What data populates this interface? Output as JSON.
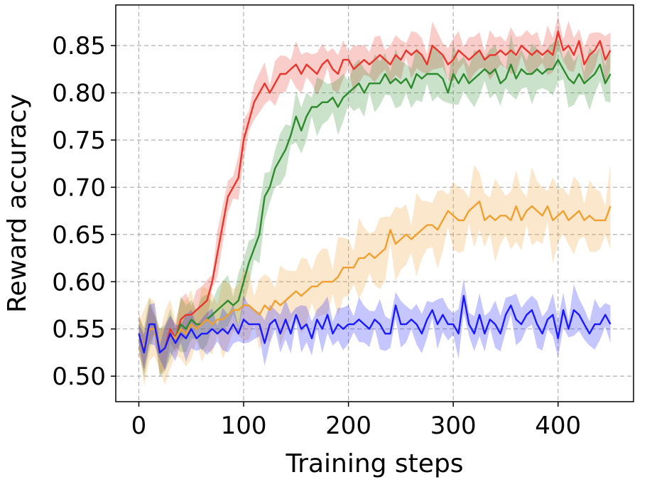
{
  "chart_data": {
    "type": "line",
    "xlabel": "Training steps",
    "ylabel": "Reward accuracy",
    "xlim": [
      -22,
      472
    ],
    "ylim": [
      0.473,
      0.893
    ],
    "xticks": [
      0,
      100,
      200,
      300,
      400
    ],
    "yticks": [
      0.5,
      0.55,
      0.6,
      0.65,
      0.7,
      0.75,
      0.8,
      0.85
    ],
    "xtick_labels": [
      "0",
      "100",
      "200",
      "300",
      "400"
    ],
    "ytick_labels": [
      "0.50",
      "0.55",
      "0.60",
      "0.65",
      "0.70",
      "0.75",
      "0.80",
      "0.85"
    ],
    "grid": true,
    "x": [
      0,
      5,
      10,
      15,
      20,
      25,
      30,
      35,
      40,
      45,
      50,
      55,
      60,
      65,
      70,
      75,
      80,
      85,
      90,
      95,
      100,
      105,
      110,
      115,
      120,
      125,
      130,
      135,
      140,
      145,
      150,
      155,
      160,
      165,
      170,
      175,
      180,
      185,
      190,
      195,
      200,
      205,
      210,
      215,
      220,
      225,
      230,
      235,
      240,
      245,
      250,
      255,
      260,
      265,
      270,
      275,
      280,
      285,
      290,
      295,
      300,
      305,
      310,
      315,
      320,
      325,
      330,
      335,
      340,
      345,
      350,
      355,
      360,
      365,
      370,
      375,
      380,
      385,
      390,
      395,
      400,
      405,
      410,
      415,
      420,
      425,
      430,
      435,
      440,
      445,
      450
    ],
    "series": [
      {
        "color": "#e8362c",
        "values": [
          0.545,
          0.525,
          0.555,
          0.555,
          0.525,
          0.53,
          0.55,
          0.54,
          0.56,
          0.565,
          0.565,
          0.57,
          0.575,
          0.58,
          0.6,
          0.63,
          0.66,
          0.69,
          0.7,
          0.71,
          0.75,
          0.77,
          0.79,
          0.8,
          0.81,
          0.8,
          0.81,
          0.82,
          0.82,
          0.825,
          0.83,
          0.82,
          0.83,
          0.825,
          0.82,
          0.83,
          0.835,
          0.825,
          0.82,
          0.835,
          0.835,
          0.825,
          0.83,
          0.835,
          0.83,
          0.835,
          0.84,
          0.835,
          0.83,
          0.84,
          0.835,
          0.845,
          0.84,
          0.845,
          0.84,
          0.83,
          0.85,
          0.845,
          0.84,
          0.83,
          0.835,
          0.845,
          0.84,
          0.835,
          0.84,
          0.845,
          0.835,
          0.84,
          0.84,
          0.845,
          0.84,
          0.845,
          0.84,
          0.85,
          0.845,
          0.84,
          0.845,
          0.84,
          0.845,
          0.84,
          0.865,
          0.845,
          0.85,
          0.84,
          0.855,
          0.83,
          0.84,
          0.845,
          0.855,
          0.835,
          0.845
        ]
      },
      {
        "color": "#2d8a2d",
        "values": [
          0.545,
          0.525,
          0.555,
          0.555,
          0.525,
          0.53,
          0.545,
          0.54,
          0.555,
          0.55,
          0.56,
          0.555,
          0.555,
          0.56,
          0.565,
          0.57,
          0.575,
          0.58,
          0.575,
          0.58,
          0.6,
          0.62,
          0.635,
          0.65,
          0.69,
          0.7,
          0.72,
          0.73,
          0.74,
          0.755,
          0.775,
          0.76,
          0.775,
          0.785,
          0.785,
          0.79,
          0.79,
          0.795,
          0.785,
          0.795,
          0.8,
          0.805,
          0.81,
          0.8,
          0.81,
          0.81,
          0.81,
          0.82,
          0.81,
          0.815,
          0.81,
          0.815,
          0.805,
          0.82,
          0.815,
          0.82,
          0.82,
          0.82,
          0.815,
          0.8,
          0.82,
          0.81,
          0.82,
          0.81,
          0.815,
          0.82,
          0.825,
          0.82,
          0.825,
          0.81,
          0.815,
          0.83,
          0.815,
          0.825,
          0.82,
          0.82,
          0.825,
          0.82,
          0.825,
          0.825,
          0.835,
          0.825,
          0.815,
          0.81,
          0.82,
          0.81,
          0.815,
          0.82,
          0.83,
          0.81,
          0.82
        ]
      },
      {
        "color": "#f0a030",
        "values": [
          0.545,
          0.53,
          0.55,
          0.55,
          0.525,
          0.53,
          0.545,
          0.54,
          0.55,
          0.545,
          0.555,
          0.55,
          0.555,
          0.56,
          0.555,
          0.56,
          0.56,
          0.565,
          0.57,
          0.57,
          0.575,
          0.575,
          0.57,
          0.565,
          0.575,
          0.57,
          0.58,
          0.575,
          0.58,
          0.585,
          0.59,
          0.585,
          0.59,
          0.595,
          0.595,
          0.6,
          0.6,
          0.6,
          0.605,
          0.615,
          0.615,
          0.615,
          0.625,
          0.625,
          0.63,
          0.625,
          0.63,
          0.635,
          0.655,
          0.64,
          0.645,
          0.65,
          0.645,
          0.65,
          0.655,
          0.66,
          0.66,
          0.655,
          0.665,
          0.675,
          0.67,
          0.665,
          0.665,
          0.675,
          0.68,
          0.685,
          0.665,
          0.67,
          0.665,
          0.67,
          0.67,
          0.665,
          0.68,
          0.665,
          0.675,
          0.68,
          0.675,
          0.67,
          0.68,
          0.665,
          0.67,
          0.675,
          0.665,
          0.67,
          0.675,
          0.665,
          0.67,
          0.665,
          0.665,
          0.665,
          0.68
        ]
      },
      {
        "color": "#1a1aff",
        "values": [
          0.545,
          0.525,
          0.555,
          0.555,
          0.525,
          0.53,
          0.545,
          0.535,
          0.545,
          0.54,
          0.55,
          0.54,
          0.545,
          0.545,
          0.55,
          0.545,
          0.55,
          0.545,
          0.555,
          0.545,
          0.56,
          0.555,
          0.555,
          0.555,
          0.535,
          0.555,
          0.56,
          0.545,
          0.56,
          0.545,
          0.565,
          0.55,
          0.555,
          0.54,
          0.56,
          0.55,
          0.565,
          0.545,
          0.555,
          0.55,
          0.555,
          0.555,
          0.56,
          0.555,
          0.55,
          0.56,
          0.555,
          0.545,
          0.545,
          0.575,
          0.555,
          0.555,
          0.56,
          0.555,
          0.545,
          0.56,
          0.57,
          0.555,
          0.565,
          0.555,
          0.555,
          0.545,
          0.585,
          0.555,
          0.545,
          0.565,
          0.545,
          0.56,
          0.555,
          0.545,
          0.565,
          0.575,
          0.56,
          0.555,
          0.565,
          0.57,
          0.555,
          0.545,
          0.56,
          0.565,
          0.54,
          0.57,
          0.55,
          0.57,
          0.565,
          0.555,
          0.545,
          0.555,
          0.555,
          0.565,
          0.555
        ]
      }
    ],
    "band_halfwidth": [
      0.018,
      0.022,
      0.03,
      0.018
    ],
    "band_color_opacity": 0.25
  }
}
